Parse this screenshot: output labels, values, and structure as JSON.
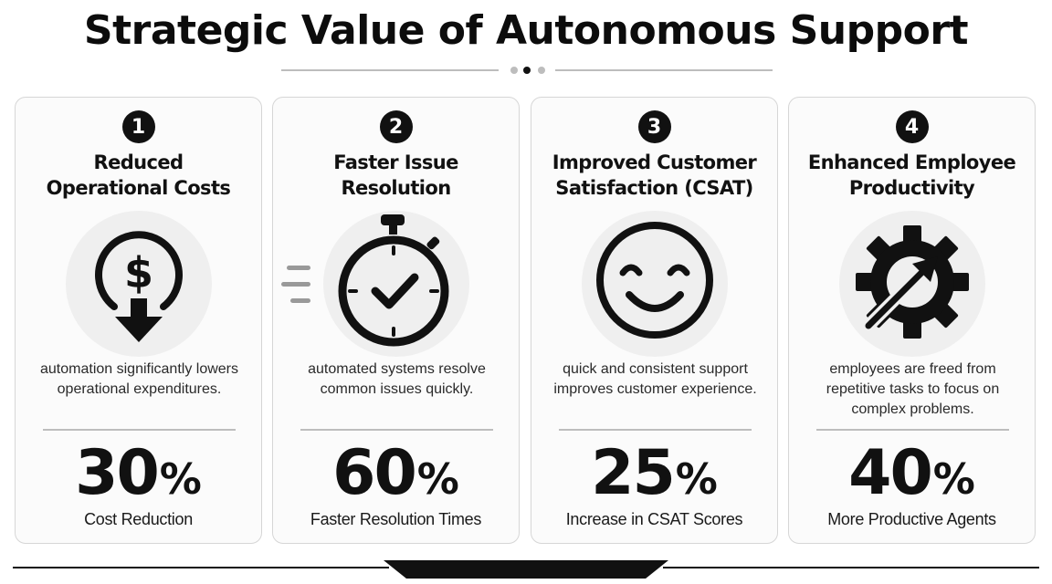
{
  "title": "Strategic Value of Autonomous Support",
  "colors": {
    "ink": "#111111",
    "icon_bg": "#efefef",
    "card_bg": "#fbfbfb",
    "rule": "#bdbdbd"
  },
  "cards": [
    {
      "number": "1",
      "title": "Reduced\nOperational Costs",
      "icon": "dollar-down-arrow-icon",
      "description": "automation significantly lowers operational expenditures.",
      "stat_value": "30",
      "stat_unit": "%",
      "stat_label": "Cost Reduction"
    },
    {
      "number": "2",
      "title": "Faster Issue\nResolution",
      "icon": "stopwatch-check-icon",
      "description": "automated systems resolve common issues quickly.",
      "stat_value": "60",
      "stat_unit": "%",
      "stat_label": "Faster Resolution Times"
    },
    {
      "number": "3",
      "title": "Improved Customer\nSatisfaction (CSAT)",
      "icon": "smiley-face-icon",
      "description": "quick and consistent support improves customer experience.",
      "stat_value": "25",
      "stat_unit": "%",
      "stat_label": "Increase in CSAT Scores"
    },
    {
      "number": "4",
      "title": "Enhanced Employee\nProductivity",
      "icon": "gear-arrow-icon",
      "description": "employees are freed from repetitive tasks to focus on complex problems.",
      "stat_value": "40",
      "stat_unit": "%",
      "stat_label": "More Productive Agents"
    }
  ]
}
